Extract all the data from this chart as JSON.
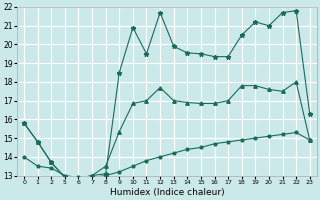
{
  "xlabel": "Humidex (Indice chaleur)",
  "bg_color": "#cce9ea",
  "grid_color": "#ffffff",
  "line_color": "#1a6b5a",
  "ylim": [
    13,
    22
  ],
  "yticks": [
    13,
    14,
    15,
    16,
    17,
    18,
    19,
    20,
    21,
    22
  ],
  "tick_labels": [
    "0",
    "1",
    "2",
    "5",
    "6",
    "7",
    "8",
    "9",
    "10",
    "11",
    "12",
    "13",
    "14",
    "15",
    "16",
    "17",
    "18",
    "19",
    "20",
    "21",
    "22",
    "23"
  ],
  "line1_y": [
    15.8,
    14.8,
    13.7,
    12.9,
    12.85,
    13.0,
    13.1,
    18.5,
    20.9,
    19.5,
    21.7,
    19.9,
    19.55,
    19.5,
    19.35,
    19.35,
    20.5,
    21.2,
    21.0,
    21.7,
    21.8,
    16.3
  ],
  "line2_y": [
    15.8,
    14.8,
    13.7,
    12.9,
    12.85,
    13.0,
    13.5,
    15.35,
    16.85,
    17.0,
    17.7,
    17.0,
    16.9,
    16.85,
    16.85,
    17.0,
    17.8,
    17.8,
    17.6,
    17.5,
    18.0,
    14.9
  ],
  "line3_y": [
    14.0,
    13.5,
    13.4,
    13.0,
    12.9,
    12.9,
    13.0,
    13.2,
    13.5,
    13.8,
    14.0,
    14.2,
    14.4,
    14.5,
    14.7,
    14.8,
    14.9,
    15.0,
    15.1,
    15.2,
    15.3,
    14.9
  ]
}
